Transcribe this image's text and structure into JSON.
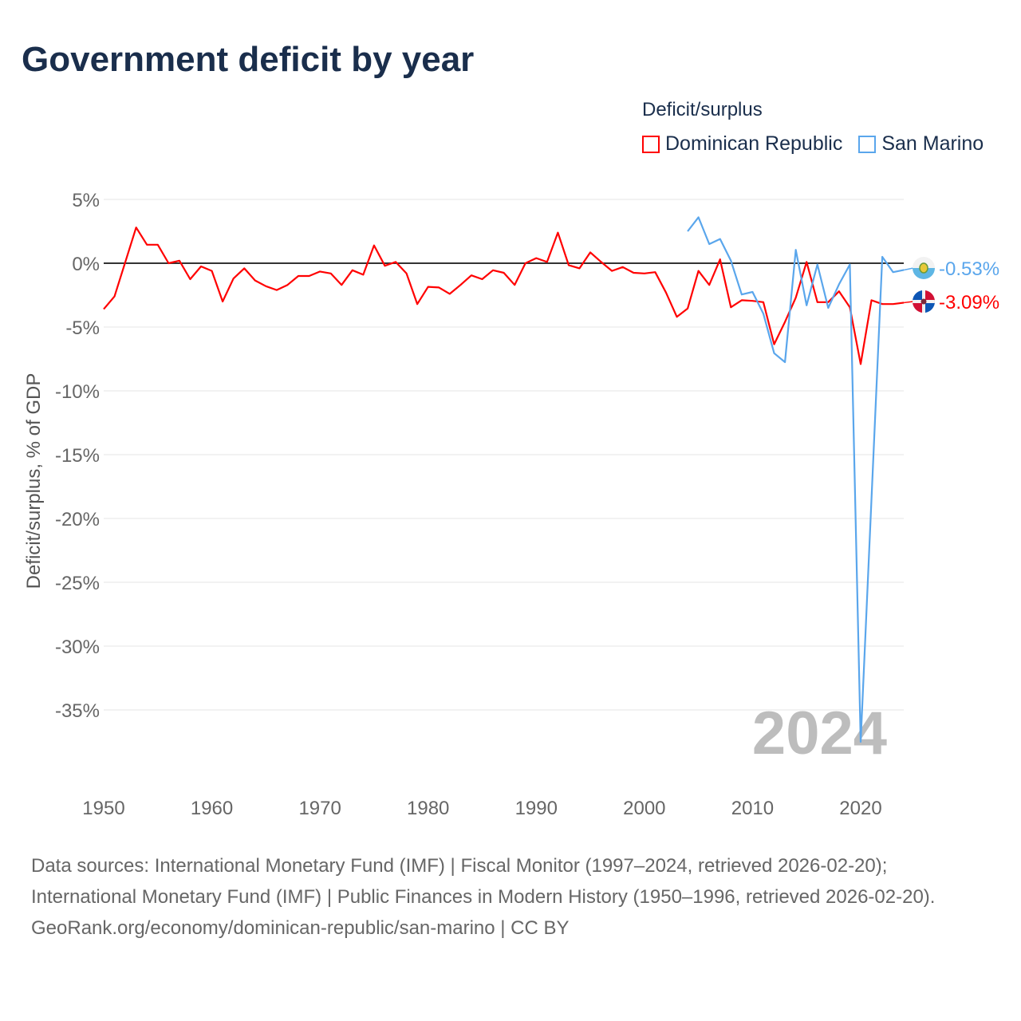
{
  "title": "Government deficit by year",
  "legend": {
    "title": "Deficit/surplus",
    "items": [
      {
        "label": "Dominican Republic",
        "color": "#ff0000"
      },
      {
        "label": "San Marino",
        "color": "#5aa6ec"
      }
    ]
  },
  "footer": {
    "sources": "Data sources: International Monetary Fund (IMF) | Fiscal Monitor (1997–2024, retrieved 2026-02-20); International Monetary Fund (IMF) | Public Finances in Modern History (1950–1996, retrieved 2026-02-20).",
    "credit": "GeoRank.org/economy/dominican-republic/san-marino | CC BY"
  },
  "chart_data": {
    "type": "line",
    "title": "Government deficit by year",
    "ylabel": "Deficit/surplus, % of GDP",
    "xlabel": "",
    "xlim": [
      1950,
      2024
    ],
    "ylim": [
      -40,
      5
    ],
    "xticks": [
      "1950",
      "1960",
      "1970",
      "1980",
      "1990",
      "2000",
      "2010",
      "2020"
    ],
    "yticks": [
      "5%",
      "0%",
      "-5%",
      "-10%",
      "-15%",
      "-20%",
      "-25%",
      "-30%",
      "-35%"
    ],
    "ytick_values": [
      5,
      0,
      -5,
      -10,
      -15,
      -20,
      -25,
      -30,
      -35
    ],
    "year_label": "2024",
    "series": [
      {
        "name": "Dominican Republic",
        "color": "#ff0000",
        "end_label": "-3.09%",
        "start": 1950,
        "values": [
          -3.6,
          -2.6,
          0.1,
          2.8,
          1.45,
          1.45,
          0,
          0.2,
          -1.25,
          -0.25,
          -0.6,
          -3.0,
          -1.2,
          -0.4,
          -1.35,
          -1.8,
          -2.1,
          -1.7,
          -1.0,
          -1.0,
          -0.65,
          -0.8,
          -1.7,
          -0.55,
          -0.9,
          1.4,
          -0.2,
          0.1,
          -0.8,
          -3.2,
          -1.85,
          -1.9,
          -2.4,
          -1.7,
          -0.95,
          -1.25,
          -0.55,
          -0.75,
          -1.7,
          0,
          0.4,
          0.1,
          2.4,
          -0.15,
          -0.4,
          0.85,
          0.1,
          -0.6,
          -0.3,
          -0.75,
          -0.8,
          -0.7,
          -2.3,
          -4.2,
          -3.55,
          -0.6,
          -1.7,
          0.3,
          -3.45,
          -2.9,
          -2.95,
          -3.05,
          -6.35,
          -4.6,
          -2.7,
          0.1,
          -3.05,
          -3.05,
          -2.2,
          -3.45,
          -7.9,
          -2.9,
          -3.2,
          -3.2,
          -3.09
        ]
      },
      {
        "name": "San Marino",
        "color": "#5aa6ec",
        "end_label": "-0.53%",
        "start": 2004,
        "values": [
          2.5,
          3.6,
          1.5,
          1.9,
          0.2,
          -2.45,
          -2.25,
          -3.95,
          -7.05,
          -7.75,
          1.05,
          -3.3,
          -0.1,
          -3.5,
          -1.65,
          -0.1,
          -37.5,
          -18.5,
          0.5,
          -0.7,
          -0.53
        ]
      }
    ]
  }
}
